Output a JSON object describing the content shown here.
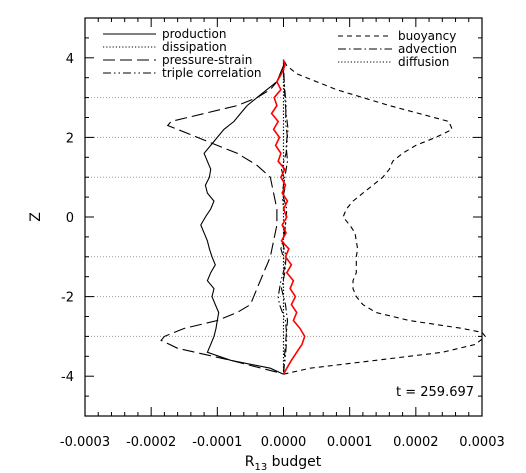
{
  "chart_data": {
    "type": "line",
    "xlabel": "R",
    "xlabel_sub": "13",
    "xlabel_tail": " budget",
    "ylabel": "Z",
    "xlim": [
      -0.0003,
      0.0003
    ],
    "ylim": [
      -5,
      5
    ],
    "xticks": [
      -0.0003,
      -0.0002,
      -0.0001,
      0.0,
      0.0001,
      0.0002,
      0.0003
    ],
    "xtick_labels": [
      "-0.0003",
      "-0.0002",
      "-0.0001",
      "0.0000",
      "0.0001",
      "0.0002",
      "0.0003"
    ],
    "yticks": [
      -4,
      -2,
      0,
      2,
      4
    ],
    "ytick_labels": [
      "-4",
      "-2",
      "0",
      "2",
      "4"
    ],
    "gridlines_z": [
      3,
      2,
      1,
      -1,
      -2,
      -3
    ],
    "annotation": "t = 259.697",
    "legend_left": [
      "production",
      "dissipation",
      "pressure-strain",
      "triple correlation"
    ],
    "legend_right": [
      "buoyancy",
      "advection",
      "diffusion"
    ],
    "colors": {
      "axis": "#000000",
      "total": "#ff0000",
      "grid": "#999999"
    },
    "series": [
      {
        "name": "production",
        "style": "solid",
        "z": [
          -3.95,
          -3.8,
          -3.6,
          -3.4,
          -3.2,
          -3.0,
          -2.8,
          -2.6,
          -2.4,
          -2.2,
          -2.0,
          -1.8,
          -1.6,
          -1.4,
          -1.2,
          -1.0,
          -0.8,
          -0.6,
          -0.4,
          -0.2,
          0.0,
          0.2,
          0.4,
          0.6,
          0.8,
          1.0,
          1.2,
          1.4,
          1.6,
          1.8,
          2.0,
          2.2,
          2.4,
          2.6,
          2.8,
          3.0,
          3.2,
          3.4,
          3.6,
          3.8,
          3.95
        ],
        "x": [
          0.0,
          -2e-05,
          -8e-05,
          -0.000115,
          -0.00011,
          -0.000105,
          -0.000102,
          -0.0001,
          -9.8e-05,
          -0.000103,
          -0.000108,
          -0.000105,
          -0.000115,
          -0.00011,
          -0.000103,
          -0.000108,
          -0.000112,
          -0.000115,
          -0.00012,
          -0.000125,
          -0.000118,
          -0.00011,
          -0.000105,
          -0.000115,
          -0.000118,
          -0.000112,
          -0.00011,
          -0.000115,
          -0.00012,
          -0.00011,
          -0.0001,
          -9e-05,
          -7.5e-05,
          -6.5e-05,
          -5.5e-05,
          -4e-05,
          -2.5e-05,
          -1e-05,
          -5e-06,
          0.0,
          0.0
        ]
      },
      {
        "name": "dissipation",
        "style": "dotted",
        "z": [
          -3.95,
          -3.0,
          -2.0,
          -1.0,
          0.0,
          1.0,
          2.0,
          3.0,
          3.95
        ],
        "x": [
          0.0,
          0.0,
          0.0,
          0.0,
          0.0,
          0.0,
          0.0,
          0.0,
          0.0
        ]
      },
      {
        "name": "pressure-strain",
        "style": "longdash",
        "z": [
          -3.9,
          -3.6,
          -3.3,
          -3.1,
          -3.0,
          -2.8,
          -2.6,
          -2.4,
          -2.2,
          -2.0,
          -1.8,
          -1.6,
          -1.4,
          -1.2,
          -1.0,
          -0.6,
          -0.2,
          0.2,
          0.6,
          1.0,
          1.3,
          1.6,
          1.8,
          2.0,
          2.2,
          2.3,
          2.4,
          2.6,
          2.8,
          3.0,
          3.2,
          3.4,
          3.6,
          3.8
        ],
        "x": [
          -1e-05,
          -8e-05,
          -0.00016,
          -0.000185,
          -0.00018,
          -0.00015,
          -0.0001,
          -7e-05,
          -5e-05,
          -4.5e-05,
          -4e-05,
          -3.5e-05,
          -3e-05,
          -2.5e-05,
          -2e-05,
          -1.5e-05,
          -1e-05,
          -1e-05,
          -1.5e-05,
          -2e-05,
          -4e-05,
          -7e-05,
          -0.0001,
          -0.00013,
          -0.00016,
          -0.000175,
          -0.00017,
          -0.00012,
          -7e-05,
          -4e-05,
          -2e-05,
          -1e-05,
          -5e-06,
          0.0
        ]
      },
      {
        "name": "triple correlation",
        "style": "dashdotdot",
        "z": [
          -3.9,
          -3.5,
          -3.0,
          -2.6,
          -2.2,
          -2.0,
          -1.6,
          -1.2,
          -0.8,
          -0.4,
          0.0,
          0.4,
          0.8,
          1.2,
          1.6,
          2.0,
          2.4,
          2.8,
          3.2,
          3.6,
          3.9
        ],
        "x": [
          0.0,
          3e-06,
          5e-06,
          3e-06,
          -6e-06,
          -8e-06,
          -4e-06,
          3e-06,
          -4e-06,
          2e-06,
          4e-06,
          -2e-06,
          3e-06,
          -3e-06,
          4e-06,
          6e-06,
          3e-06,
          4e-06,
          2e-06,
          0.0,
          0.0
        ]
      },
      {
        "name": "buoyancy",
        "style": "shortdash",
        "z": [
          -3.95,
          -3.8,
          -3.6,
          -3.4,
          -3.2,
          -3.0,
          -2.9,
          -2.8,
          -2.6,
          -2.4,
          -2.2,
          -2.0,
          -1.8,
          -1.6,
          -1.4,
          -1.2,
          -1.0,
          -0.8,
          -0.6,
          -0.4,
          -0.2,
          0.0,
          0.2,
          0.4,
          0.6,
          0.8,
          1.0,
          1.2,
          1.4,
          1.6,
          1.8,
          2.0,
          2.2,
          2.4,
          2.6,
          2.8,
          3.0,
          3.2,
          3.4,
          3.6,
          3.8,
          3.95
        ],
        "x": [
          0.0,
          4e-05,
          0.00014,
          0.00024,
          0.00029,
          0.000305,
          0.0003,
          0.00027,
          0.00019,
          0.00014,
          0.00012,
          0.00011,
          0.000105,
          0.000105,
          0.00011,
          0.00011,
          0.00011,
          0.000112,
          0.00011,
          0.000108,
          0.0001,
          9e-05,
          9.5e-05,
          0.000105,
          0.00012,
          0.000135,
          0.00015,
          0.00016,
          0.000165,
          0.00018,
          0.0002,
          0.00023,
          0.000255,
          0.00025,
          0.000205,
          0.00016,
          0.00012,
          8e-05,
          5e-05,
          2e-05,
          5e-06,
          0.0
        ]
      },
      {
        "name": "advection",
        "style": "dashdot",
        "z": [
          -3.9,
          -3.4,
          -3.0,
          -2.6,
          -2.2,
          -1.8,
          -1.4,
          -1.0,
          -0.6,
          -0.2,
          0.2,
          0.6,
          1.0,
          1.4,
          1.8,
          2.2,
          2.6,
          3.0,
          3.4,
          3.9
        ],
        "x": [
          0.0,
          2e-06,
          4e-06,
          6e-06,
          3e-06,
          -3e-06,
          2e-06,
          4e-06,
          -2e-06,
          3e-06,
          5e-06,
          -2e-06,
          2e-06,
          6e-06,
          4e-06,
          7e-06,
          4e-06,
          2e-06,
          1e-06,
          0.0
        ]
      },
      {
        "name": "diffusion",
        "style": "dotted",
        "z": [
          -3.95,
          -2.0,
          0.0,
          2.0,
          3.95
        ],
        "x": [
          0.0,
          0.0,
          0.0,
          0.0,
          0.0
        ]
      },
      {
        "style": "solid",
        "z": [
          -3.95,
          -3.8,
          -3.6,
          -3.4,
          -3.2,
          -3.0,
          -2.8,
          -2.6,
          -2.4,
          -2.2,
          -2.0,
          -1.8,
          -1.6,
          -1.4,
          -1.2,
          -1.0,
          -0.8,
          -0.6,
          -0.4,
          -0.2,
          0.0,
          0.2,
          0.4,
          0.6,
          0.8,
          1.0,
          1.2,
          1.4,
          1.6,
          1.8,
          2.0,
          2.2,
          2.4,
          2.6,
          2.8,
          3.0,
          3.2,
          3.4,
          3.6,
          3.8,
          3.95
        ],
        "x": [
          0.0,
          5e-06,
          1.2e-05,
          2e-05,
          2.8e-05,
          3.2e-05,
          2.5e-05,
          1.5e-05,
          2e-05,
          1.2e-05,
          1.8e-05,
          1e-05,
          1.5e-05,
          5e-06,
          1.2e-05,
          3e-06,
          8e-06,
          -3e-06,
          4e-06,
          -2e-06,
          5e-06,
          0.0,
          6e-06,
          -2e-06,
          3e-06,
          -4e-06,
          2e-06,
          -8e-06,
          -4e-06,
          -1.2e-05,
          -6e-06,
          -1.5e-05,
          -8e-06,
          -1.8e-05,
          -1e-05,
          -1.4e-05,
          -4e-06,
          -1e-05,
          -3e-06,
          2e-06,
          0.0
        ]
      }
    ]
  }
}
